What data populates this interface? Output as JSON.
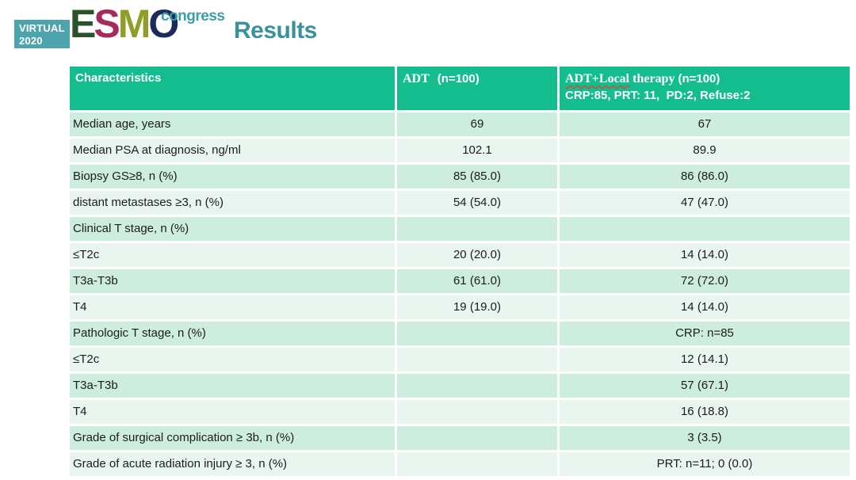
{
  "logo": {
    "virtual_line1": "VIRTUAL",
    "virtual_line2": "2020",
    "esmo_letters": [
      {
        "char": "E",
        "color": "#2B5329"
      },
      {
        "char": "S",
        "color": "#A72A5D"
      },
      {
        "char": "M",
        "color": "#8F9E27"
      },
      {
        "char": "O",
        "color": "#1B2B5D"
      }
    ],
    "congress": "congress"
  },
  "page_title": "Results",
  "colors": {
    "header_green": "#13BD8D",
    "row_dark": "#CDEDDE",
    "row_light": "#E9F6EF",
    "title_teal": "#38919B",
    "virtual_box": "#4EA4AD",
    "congress_teal": "#3D9EA8",
    "wavy_red": "#C94F43"
  },
  "table": {
    "header": {
      "col1": "Characteristics",
      "col2_serif": "ADT",
      "col2_sans": "(n=100)",
      "col3_line1_underlined": "ADT+Local",
      "col3_line1_serif": " therapy ",
      "col3_line1_sans": "(n=100)",
      "col3_line2": "CRP:85, PRT: 11,  PD:2, Refuse:2"
    },
    "rows": [
      {
        "label": "Median age, years",
        "indent": false,
        "adt": "69",
        "local": "67"
      },
      {
        "label": "Median PSA at diagnosis, ng/ml",
        "indent": false,
        "adt": "102.1",
        "local": "89.9"
      },
      {
        "label": "Biopsy GS≥8, n (%)",
        "indent": false,
        "adt": "85 (85.0)",
        "local": "86 (86.0)"
      },
      {
        "label": "distant metastases ≥3, n (%)",
        "indent": false,
        "adt": "54 (54.0)",
        "local": "47 (47.0)"
      },
      {
        "label": "Clinical T stage, n (%)",
        "indent": false,
        "adt": "",
        "local": ""
      },
      {
        "label": "≤T2c",
        "indent": true,
        "adt": "20 (20.0)",
        "local": "14 (14.0)"
      },
      {
        "label": "T3a-T3b",
        "indent": true,
        "adt": "61 (61.0)",
        "local": "72 (72.0)"
      },
      {
        "label": "T4",
        "indent": true,
        "adt": "19 (19.0)",
        "local": "14 (14.0)"
      },
      {
        "label": "Pathologic T stage, n (%)",
        "indent": false,
        "adt": "",
        "local": "CRP: n=85"
      },
      {
        "label": "≤T2c",
        "indent": true,
        "adt": "",
        "local": "12 (14.1)"
      },
      {
        "label": "T3a-T3b",
        "indent": true,
        "adt": "",
        "local": "57 (67.1)"
      },
      {
        "label": "T4",
        "indent": true,
        "adt": "",
        "local": "16 (18.8)"
      },
      {
        "label": "Grade of surgical complication ≥ 3b, n (%)",
        "indent": false,
        "adt": "",
        "local": "3 (3.5)"
      },
      {
        "label": "Grade of acute radiation injury ≥ 3, n (%)",
        "indent": false,
        "adt": "",
        "local": "PRT: n=11; 0 (0.0)"
      }
    ]
  }
}
